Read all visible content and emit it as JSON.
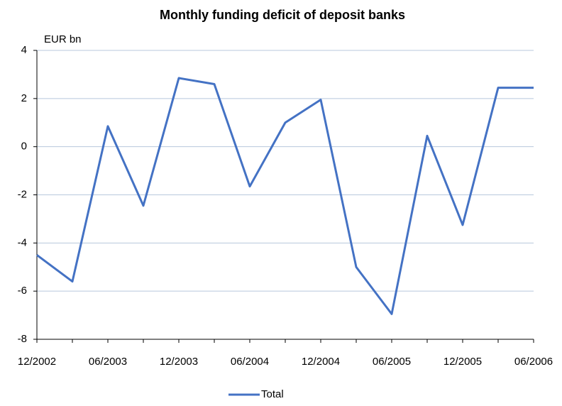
{
  "chart_data": {
    "type": "line",
    "title": "Monthly funding deficit of deposit banks",
    "y_label": "EUR bn",
    "categories": [
      "12/2002",
      null,
      "06/2003",
      null,
      "12/2003",
      null,
      "06/2004",
      null,
      "12/2004",
      null,
      "06/2005",
      null,
      "12/2005",
      null,
      "06/2006"
    ],
    "series": [
      {
        "name": "Total",
        "color": "#4472c4",
        "values": [
          -4.5,
          -5.6,
          0.85,
          -2.45,
          2.85,
          2.6,
          -1.65,
          1.0,
          1.95,
          -5.0,
          -6.95,
          0.45,
          -3.25,
          2.45,
          2.45
        ]
      }
    ],
    "ylim": [
      -8,
      4
    ],
    "yticks": [
      -8,
      -6,
      -4,
      -2,
      0,
      2,
      4
    ],
    "grid": true,
    "legend": "bottom"
  }
}
